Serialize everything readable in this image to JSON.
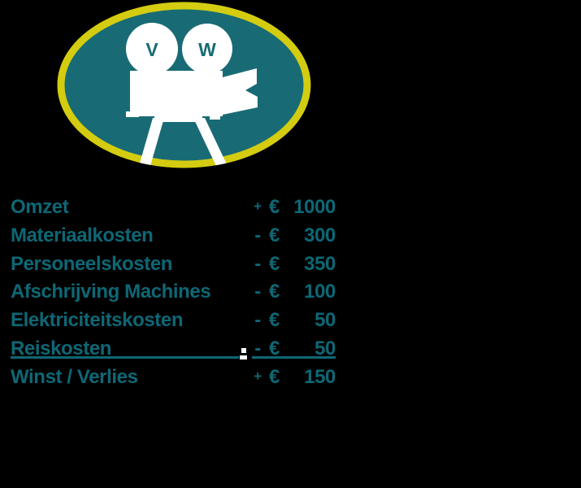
{
  "background_color": "#000000",
  "logo": {
    "reel_letters": [
      "V",
      "W"
    ],
    "colors": {
      "oval_fill": "#186B74",
      "ring": "#D3CC10",
      "camera": "#FFFFFF",
      "letters": "#186B74"
    }
  },
  "statement": {
    "currency_symbol": "€",
    "text_color": "#0E6775",
    "rows": [
      {
        "label": "Omzet",
        "sign": "+",
        "amount": "1000",
        "underlined": false
      },
      {
        "label": "Materiaalkosten",
        "sign": "-",
        "amount": "300",
        "underlined": false
      },
      {
        "label": "Personeelskosten",
        "sign": "-",
        "amount": "350",
        "underlined": false
      },
      {
        "label": "Afschrijving Machines",
        "sign": "-",
        "amount": "100",
        "underlined": false
      },
      {
        "label": "Elektriciteitskosten",
        "sign": "-",
        "amount": "50",
        "underlined": false
      },
      {
        "label": "Reiskosten",
        "sign": "-",
        "amount": "50",
        "underlined": true
      },
      {
        "label": "Winst / Verlies",
        "sign": "+",
        "amount": "150",
        "underlined": false
      }
    ]
  }
}
